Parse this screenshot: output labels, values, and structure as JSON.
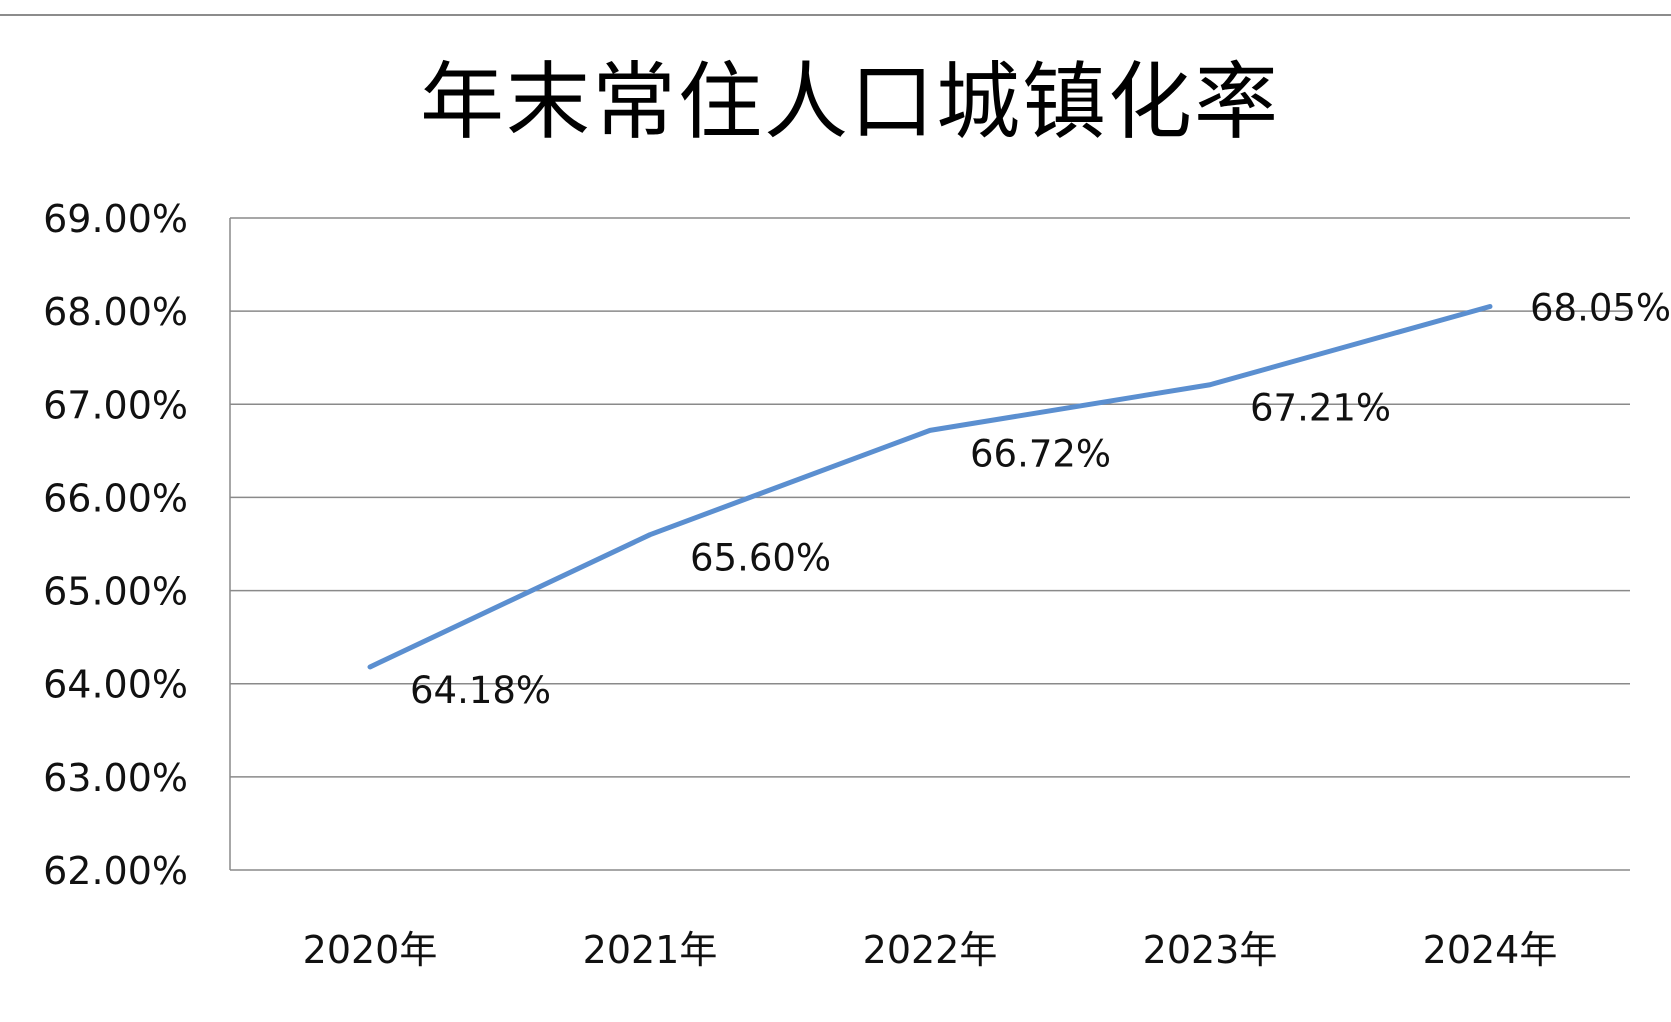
{
  "chart_data": {
    "type": "line",
    "title": "年末常住人口城镇化率",
    "categories": [
      "2020年",
      "2021年",
      "2022年",
      "2023年",
      "2024年"
    ],
    "series": [
      {
        "values": [
          64.18,
          65.6,
          66.72,
          67.21,
          68.05
        ],
        "color": "#5b8fd0"
      }
    ],
    "data_labels": [
      "64.18%",
      "65.60%",
      "66.72%",
      "67.21%",
      "68.05%"
    ],
    "ylim": [
      62,
      69
    ],
    "yticks": [
      62,
      63,
      64,
      65,
      66,
      67,
      68,
      69
    ],
    "ytick_labels": [
      "62.00%",
      "63.00%",
      "64.00%",
      "65.00%",
      "66.00%",
      "67.00%",
      "68.00%",
      "69.00%"
    ],
    "xlabel": "",
    "ylabel": "",
    "grid": true,
    "legend": "none"
  }
}
